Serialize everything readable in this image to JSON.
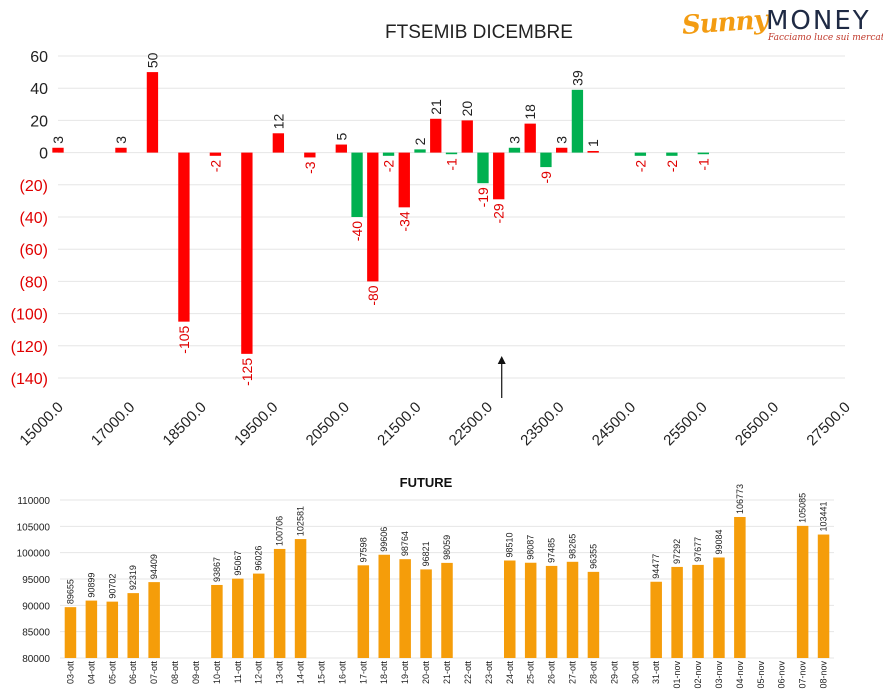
{
  "logo": {
    "brand_script": "Sunny",
    "brand_word": "MONEY",
    "tagline": "Facciamo luce sui mercati"
  },
  "chart_data": [
    {
      "type": "bar",
      "title": "FTSEMIB DICEMBRE",
      "ylim": [
        -140,
        60
      ],
      "yticks": [
        60,
        40,
        20,
        0,
        -20,
        -40,
        -60,
        -80,
        -100,
        -120,
        -140
      ],
      "ytick_labels": [
        "60",
        "40",
        "20",
        "0",
        "(20)",
        "(40)",
        "(60)",
        "(80)",
        "(100)",
        "(120)",
        "(140)"
      ],
      "xlim": [
        15000,
        27500
      ],
      "xtick_labels": [
        "15000.0",
        "17000.0",
        "18500.0",
        "19500.0",
        "20500.0",
        "21500.0",
        "22500.0",
        "23500.0",
        "24500.0",
        "25500.0",
        "26500.0",
        "27500.0"
      ],
      "bar_width": 250,
      "grid": true,
      "legend": "none",
      "series": [
        {
          "color": "#ff0000",
          "points": [
            {
              "x": 15000,
              "value": 3
            },
            {
              "x": 16000,
              "value": 3
            },
            {
              "x": 16500,
              "value": 50
            },
            {
              "x": 17000,
              "value": -105
            },
            {
              "x": 17500,
              "value": -2
            },
            {
              "x": 18000,
              "value": -125
            },
            {
              "x": 18500,
              "value": 12
            },
            {
              "x": 19000,
              "value": -3
            },
            {
              "x": 19500,
              "value": 5
            },
            {
              "x": 20000,
              "value": -80
            },
            {
              "x": 20500,
              "value": -34
            },
            {
              "x": 21000,
              "value": 21
            },
            {
              "x": 21500,
              "value": 20
            },
            {
              "x": 22000,
              "value": -29
            },
            {
              "x": 22500,
              "value": 18
            },
            {
              "x": 23000,
              "value": 3
            },
            {
              "x": 23500,
              "value": 1
            }
          ]
        },
        {
          "color": "#00b050",
          "points": [
            {
              "x": 19750,
              "value": -40
            },
            {
              "x": 20250,
              "value": -2
            },
            {
              "x": 20750,
              "value": 2
            },
            {
              "x": 21250,
              "value": -1
            },
            {
              "x": 21750,
              "value": -19
            },
            {
              "x": 22250,
              "value": 3
            },
            {
              "x": 22750,
              "value": -9
            },
            {
              "x": 23250,
              "value": 39
            },
            {
              "x": 24250,
              "value": -2
            },
            {
              "x": 24750,
              "value": -2
            },
            {
              "x": 25250,
              "value": -1
            }
          ]
        }
      ],
      "annotations": [
        {
          "type": "arrow-up",
          "x": 22000
        }
      ]
    },
    {
      "type": "bar",
      "title": "FUTURE",
      "ylim": [
        80000,
        110000
      ],
      "yticks": [
        80000,
        85000,
        90000,
        95000,
        100000,
        105000,
        110000
      ],
      "ytick_labels": [
        "80000",
        "85000",
        "90000",
        "95000",
        "100000",
        "105000",
        "110000"
      ],
      "grid": true,
      "legend": "none",
      "color": "#f59d0a",
      "categories": [
        "03-ott",
        "04-ott",
        "05-ott",
        "06-ott",
        "07-ott",
        "08-ott",
        "09-ott",
        "10-ott",
        "11-ott",
        "12-ott",
        "13-ott",
        "14-ott",
        "15-ott",
        "16-ott",
        "17-ott",
        "18-ott",
        "19-ott",
        "20-ott",
        "21-ott",
        "22-ott",
        "23-ott",
        "24-ott",
        "25-ott",
        "26-ott",
        "27-ott",
        "28-ott",
        "29-ott",
        "30-ott",
        "31-ott",
        "01-nov",
        "02-nov",
        "03-nov",
        "04-nov",
        "05-nov",
        "06-nov",
        "07-nov",
        "08-nov"
      ],
      "values": [
        89655,
        90899,
        90702,
        92319,
        94409,
        null,
        null,
        93867,
        95067,
        96026,
        100706,
        102581,
        null,
        null,
        97598,
        99606,
        98764,
        96821,
        98059,
        null,
        null,
        98510,
        98087,
        97485,
        98265,
        96355,
        null,
        null,
        94477,
        97292,
        97677,
        99084,
        106773,
        null,
        null,
        105085,
        103441
      ]
    }
  ]
}
